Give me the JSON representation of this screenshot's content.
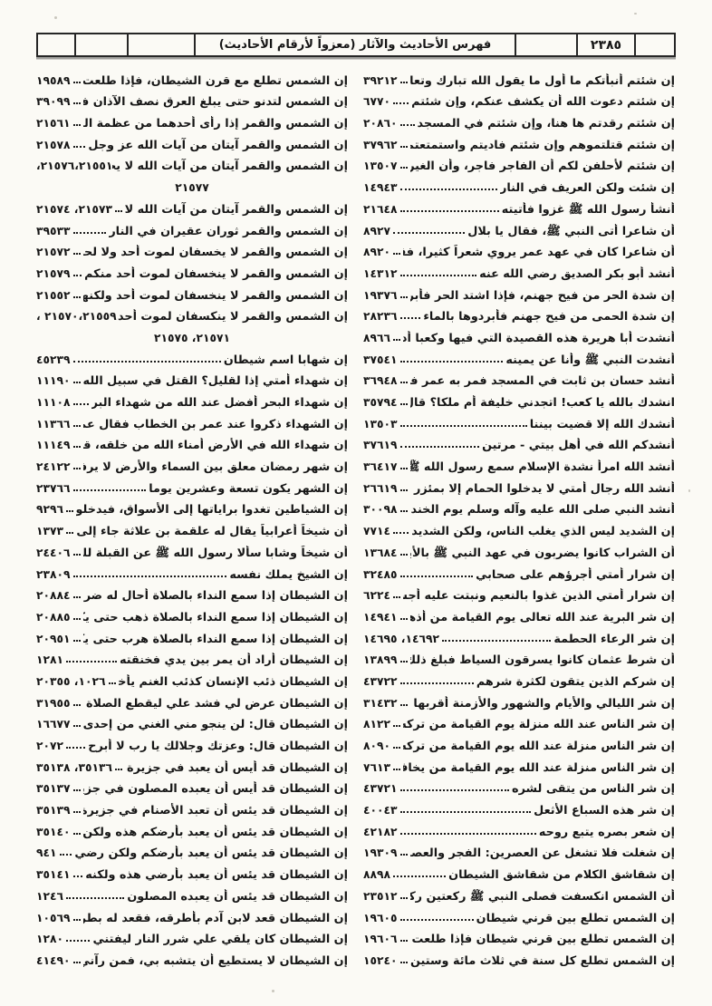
{
  "header": {
    "title": "فهرس الأحاديث والآثار (معزواً لأرقام الأحاديث)",
    "page_number": "٢٣٨٥"
  },
  "columns": {
    "right": [
      {
        "text": "إن شئتم أنبأتكم ما أول ما يقول الله تبارك وتعالى",
        "num": "٣٩٢١٢"
      },
      {
        "text": "إن شئتم دعوت الله أن يكشف عنكم، وإن شئتم",
        "num": "٦٧٧٠"
      },
      {
        "text": "إن شئتم رقدتم ها هنا، وإن شئتم في المسجد",
        "num": "٢٠٨٦٠"
      },
      {
        "text": "إن شئتم قتلتموهم وإن شئتم فاديتم واستمتعتم بالفداء",
        "num": "٣٧٩٦٢"
      },
      {
        "text": "إن شئتم لأحلفن لكم أن الفاجر فاجر، وأن الغيران لا يدري أين",
        "num": "١٣٥٠٧"
      },
      {
        "text": "إن شئت ولكن العريف في النار",
        "num": "١٤٩٤٣"
      },
      {
        "text": "أنشأ رسول الله ﷺ غزوا فأتيته",
        "num": "٢١٦٤٨"
      },
      {
        "text": "أن شاعرا أتى النبي ﷺ، فقال يا بلال",
        "num": "٨٩٢٧"
      },
      {
        "text": "أن شاعرا كان في عهد عمر يروي شعراً كثيرا، فقال عمر",
        "num": "٨٩٢٠"
      },
      {
        "text": "أنشد أبو بكر الصديق رضي الله عنه",
        "num": "١٤٣١٢"
      },
      {
        "text": "إن شدة الحر من فيح جهنم، فإذا اشتد الحر فأبردوا",
        "num": "١٩٣٧٦"
      },
      {
        "text": "إن شدة الحمى من فيح جهنم فأبردوها بالماء",
        "num": "٢٨٢٣٦"
      },
      {
        "text": "أنشدت أبا هريرة هذه القصيدة التي فيها وكعبا أدرما",
        "num": "٨٩٦٦"
      },
      {
        "text": "أنشدت النبي ﷺ وأنا عن يمينه",
        "num": "٣٧٥٤١"
      },
      {
        "text": "أنشد حسان بن ثابت في المسجد فمر به عمر فلحظه",
        "num": "٣٦٩٤٨"
      },
      {
        "text": "انشدك بالله يا كعب! اتجدني خليفة أم ملكا؟ قال: بل",
        "num": "٣٥٧٩٤"
      },
      {
        "text": "أنشدك الله إلا قضيت بيننا",
        "num": "١٣٥٠٣"
      },
      {
        "text": "أنشدكم الله في أهل بيتي - مرتين",
        "num": "٣٧٦١٩"
      },
      {
        "text": "أنشد الله امرأ نشدة الإسلام سمع رسول الله ﷺ يوم غدير",
        "num": "٣٦٤١٧"
      },
      {
        "text": "أنشد الله رجال أمتي لا يدخلوا الحمام إلا بمئزر وأنشد",
        "num": "٢٦٦١٩"
      },
      {
        "text": "أنشد النبي صلى الله عليه وآله وسلم يوم الخندق",
        "num": "٣٠٠٩٨"
      },
      {
        "text": "إن الشديد ليس الذي يغلب الناس، ولكن الشديد",
        "num": "٧٧١٤"
      },
      {
        "text": "أن الشراب كانوا يضربون في عهد النبي ﷺ بالأيدي والنعال",
        "num": "١٣٦٨٤"
      },
      {
        "text": "إن شرار أمتي أجرؤهم على صحابي",
        "num": "٣٢٤٨٥"
      },
      {
        "text": "إن شرار أمتي الذين غذوا بالنعيم ونبتت عليه أجسادهم",
        "num": "٦٢٢٤"
      },
      {
        "text": "إن شر البرية عند الله تعالى يوم القيامة من أذهب آخرته",
        "num": "١٤٩٤١"
      },
      {
        "text": "إن شر الرعاء الحطمة",
        "num": "١٤٦٩٢، ١٤٦٩٥"
      },
      {
        "text": "أن شرط عثمان كانوا يسرقون السياط فبلغ ذلك عثمان",
        "num": "١٣٨٩٩"
      },
      {
        "text": "إن شركم الذين يتقون لكثرة شرهم",
        "num": "٤٣٧٢٢"
      },
      {
        "text": "إن شر الليالي والأيام والشهور والأزمنة أقربها إلى الساعة",
        "num": "٣١٤٣٢"
      },
      {
        "text": "إن شر الناس عند الله منزلة يوم القيامة من تركه الناس",
        "num": "٨١٢٢"
      },
      {
        "text": "إن شر الناس منزلة عند الله يوم القيامة من تركه الناس",
        "num": "٨٠٩٠"
      },
      {
        "text": "إن شر الناس منزلة عند الله يوم القيامة من يخاف الناس",
        "num": "٧٦١٣"
      },
      {
        "text": "إن شر الناس من يتقى لشره",
        "num": "٤٣٧٢١"
      },
      {
        "text": "إن شر هذه السباع الأثعل",
        "num": "٤٠٠٤٣"
      },
      {
        "text": "إن شعر بصره يتبع روحه",
        "num": "٤٢١٨٢"
      },
      {
        "text": "إن شغلت فلا تشغل عن العصرين: الفجر والعصر",
        "num": "١٩٣٠٩"
      },
      {
        "text": "إن شقاشق الكلام من شقاشق الشيطان",
        "num": "٨٨٩٨"
      },
      {
        "text": "أن الشمس انكسفت فصلى النبي ﷺ ركعتين ركعتين",
        "num": "٢٣٥١٢"
      },
      {
        "text": "إن الشمس تطلع بين قرني شيطان",
        "num": "١٩٦٠٥"
      },
      {
        "text": "إن الشمس تطلع بين قرني شيطان فإذا طلعت قارنها",
        "num": "١٩٦٠٦"
      },
      {
        "text": "إن الشمس تطلع كل سنة في ثلاث مائة وستين كرة تطلع",
        "num": "١٥٢٤٠"
      }
    ],
    "left": [
      {
        "text": "إن الشمس تطلع مع قرن الشيطان، فإذا طلعت قارنها",
        "num": "١٩٥٨٩"
      },
      {
        "text": "إن الشمس لتدنو حتى يبلغ العرق نصف الآذان فبينما",
        "num": "٣٩٠٩٩"
      },
      {
        "text": "إن الشمس والقمر إذا رأى أحدهما من عظمة الله تعالى",
        "num": "٢١٥٦١"
      },
      {
        "text": "إن الشمس والقمر آيتان من آيات الله عز وجل",
        "num": "٢١٥٧٨"
      },
      {
        "text": "إن الشمس والقمر آيتان من آيات الله لا يخسفان لموت",
        "num_attached": "٢١٥٥١،",
        "num_end": "٢١٥٧٦،",
        "num_line2": "٢١٥٧٧"
      },
      {
        "text": "إن الشمس والقمر آيتان من آيات الله لا ينكسفان لموت ...",
        "num": "٢١٥٧٣، ٢١٥٧٤"
      },
      {
        "text": "إن الشمس والقمر ثوران عقيران في النار",
        "num": "٣٩٥٣٣"
      },
      {
        "text": "إن الشمس والقمر لا يخسفان لموت أحد ولا لحياته",
        "num": "٢١٥٧٢"
      },
      {
        "text": "إن الشمس والقمر لا ينخسفان لموت أحد منكم",
        "num": "٢١٥٧٩"
      },
      {
        "text": "إن الشمس والقمر لا ينخسفان لموت أحد ولكنهما",
        "num": "٢١٥٥٢"
      },
      {
        "text": "إن الشمس والقمر لا ينكسفان لموت أحد ولا لحياته",
        "num_attached": "٢١٥٥٩،",
        "num_end": "٢١٥٧٠ ،",
        "num_line2": "٢١٥٧١، ٢١٥٧٥"
      },
      {
        "text": "إن شهابا اسم شيطان",
        "num": "٤٥٢٣٩"
      },
      {
        "text": "إن شهداء أمتي إذا لقليل؟ القتل في سبيل الله شهادة",
        "num": "١١١٩٠"
      },
      {
        "text": "إن شهداء البحر أفضل عند الله من شهداء البر",
        "num": "١١١٠٨"
      },
      {
        "text": "إن الشهداء ذكروا عند عمر بن الخطاب فقال عمر للقوم",
        "num": "١١٣٦٦"
      },
      {
        "text": "إن شهداء الله في الأرض أمناء الله من خلقه، قتلوا",
        "num": "١١١٤٩"
      },
      {
        "text": "إن شهر رمضان معلق بين السماء والأرض لا يرفع",
        "num": "٢٤١٢٢"
      },
      {
        "text": "إن الشهر يكون تسعة وعشرين يوما",
        "num": "٢٣٧٦٦"
      },
      {
        "text": "إن الشياطين تغدوا براياتها إلى الأسواق، فيدخلون",
        "num": "٩٢٩٦"
      },
      {
        "text": "أن شيخاً أعرابياً يقال له علقمة بن علاثة جاء إلى النبي",
        "num": "١٣٧٣"
      },
      {
        "text": "أن شيخاً وشابا سألا رسول الله ﷺ عن القبلة للصائم، فنهى",
        "num": "٢٤٤٠٦"
      },
      {
        "text": "إن الشيخ يملك نفسه",
        "num": "٢٣٨٠٩"
      },
      {
        "text": "إن الشيطان إذا سمع النداء بالصلاة أحال له ضراط",
        "num": "٢٠٨٨٤"
      },
      {
        "text": "إن الشيطان إذا سمع النداء بالصلاة ذهب حتى يكون",
        "num": "٢٠٨٨٥"
      },
      {
        "text": "إن الشيطان إذا سمع النداء بالصلاة هرب حتى يكون",
        "num": "٢٠٩٥١"
      },
      {
        "text": "إن الشيطان أراد أن يمر بين يدي فخنقته",
        "num": "١٢٨١"
      },
      {
        "text": "إن الشيطان ذئب الإنسان كذئب الغنم يأخذ الشاة",
        "num": "١٠٢٦، ٢٠٣٥٥"
      },
      {
        "text": "إن الشيطان عرض لي فشد علي ليقطع الصلاة علي",
        "num": "٣١٩٥٥"
      },
      {
        "text": "إن الشيطان قال: لن ينجو مني الغني من إحدى ثلاث",
        "num": "١٦٦٧٧"
      },
      {
        "text": "إن الشيطان قال: وعزتك وجلالك يا رب لا أبرح",
        "num": "٢٠٧٢"
      },
      {
        "text": "إن الشيطان قد أيس أن يعبد في جزيرة العرب",
        "num": "٣٥١٣٦، ٣٥١٣٨"
      },
      {
        "text": "إن الشيطان قد أيس أن يعبده المصلون في جزيرة العرب",
        "num": "٣٥١٣٧"
      },
      {
        "text": "إن الشيطان قد يئس أن تعبد الأصنام في جزيرة العرب",
        "num": "٣٥١٣٩"
      },
      {
        "text": "إن الشيطان قد يئس أن يعبد بأرضكم هذه ولكن رضي",
        "num": "٣٥١٤٠"
      },
      {
        "text": "إن الشيطان قد يئس أن يعبد بأرضكم ولكن رضي",
        "num": "٩٤١"
      },
      {
        "text": "إن الشيطان قد يئس أن يعبد بأرضي هذه ولكنه",
        "num": "٣٥١٤١"
      },
      {
        "text": "إن الشيطان قد يئس أن يعبده المصلون",
        "num": "١٢٤٦"
      },
      {
        "text": "إن الشيطان قعد لابن آدم بأطرقه، فقعد له بطريق",
        "num": "١٠٥٦٩"
      },
      {
        "text": "إن الشيطان كان يلقي علي شرر النار ليفتني",
        "num": "١٢٨٠"
      },
      {
        "text": "إن الشيطان لا يستطيع أن يتشبه بي، فمن رآني في النوم",
        "num": "٤١٤٩٠"
      }
    ]
  }
}
